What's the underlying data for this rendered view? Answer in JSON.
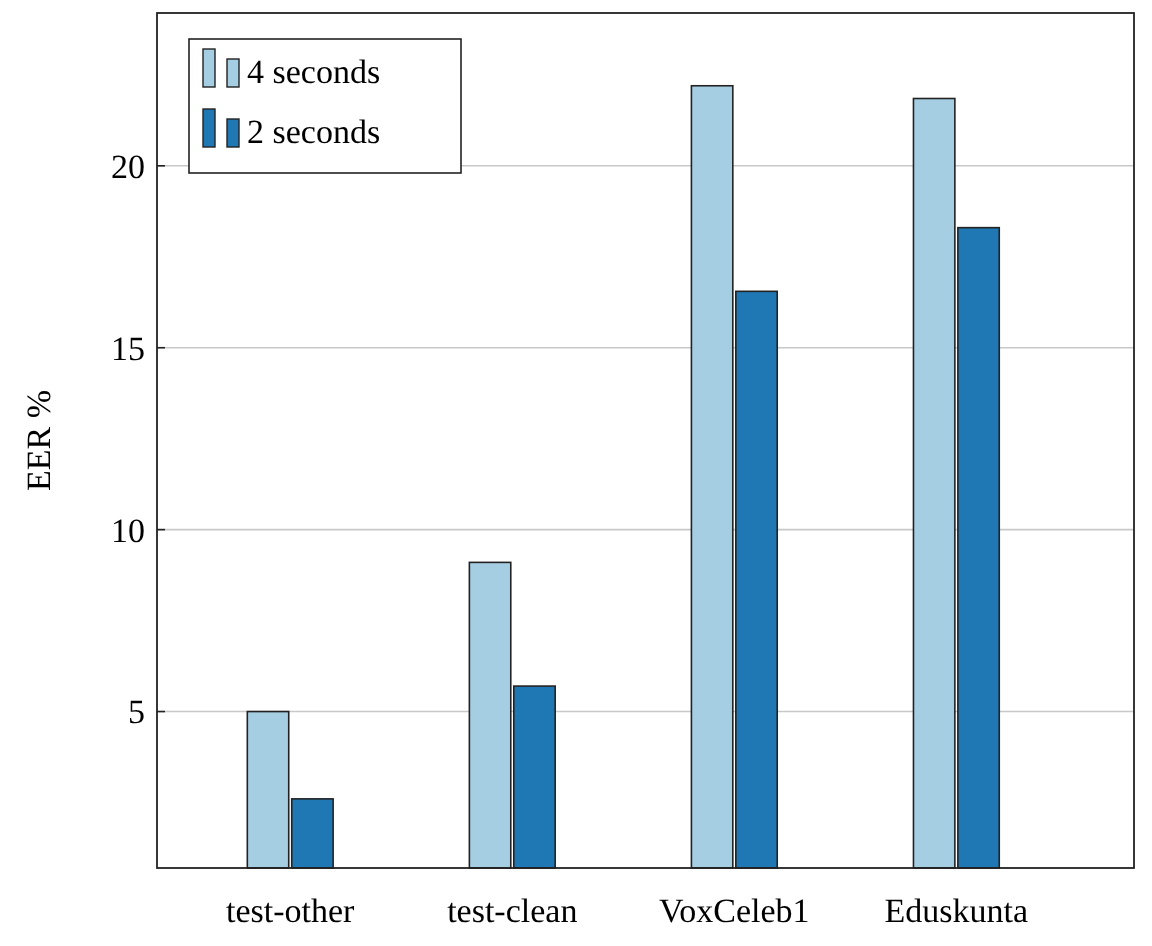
{
  "chart_data": {
    "type": "bar",
    "ylabel": "EER %",
    "categories": [
      "test-other",
      "test-clean",
      "VoxCeleb1",
      "Eduskunta"
    ],
    "series": [
      {
        "name": "4 seconds",
        "color": "#a6cee3",
        "values": [
          5.0,
          9.1,
          22.2,
          21.85
        ]
      },
      {
        "name": "2 seconds",
        "color": "#1f78b4",
        "values": [
          2.6,
          5.7,
          16.55,
          18.3
        ]
      }
    ],
    "ylim": [
      0.7,
      24.2
    ],
    "yticks": [
      5,
      10,
      15,
      20
    ],
    "grid": "y",
    "legend": "top left"
  }
}
